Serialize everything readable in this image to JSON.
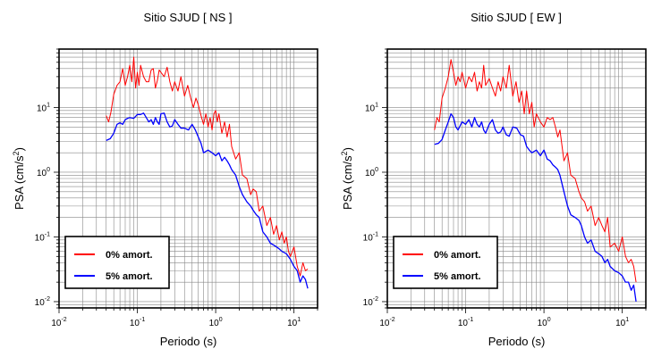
{
  "chart_data": [
    {
      "type": "line",
      "title": "Sitio SJUD [ NS ]",
      "xlabel": "Periodo (s)",
      "ylabel_base": "PSA (cm/s",
      "ylabel_sup": "2",
      "ylabel_close": ")",
      "xscale": "log",
      "yscale": "log",
      "xlim": [
        0.01,
        20
      ],
      "ylim": [
        0.008,
        80
      ],
      "grid": true,
      "legend_location": "lower-left",
      "x_ticks": [
        {
          "base": "10",
          "exp": "-2",
          "value": 0.01
        },
        {
          "base": "10",
          "exp": "-1",
          "value": 0.1
        },
        {
          "base": "10",
          "exp": "0",
          "value": 1
        },
        {
          "base": "10",
          "exp": "1",
          "value": 10
        }
      ],
      "y_ticks": [
        {
          "base": "10",
          "exp": "-2",
          "value": 0.01
        },
        {
          "base": "10",
          "exp": "-1",
          "value": 0.1
        },
        {
          "base": "10",
          "exp": "0",
          "value": 1
        },
        {
          "base": "10",
          "exp": "1",
          "value": 10
        }
      ],
      "series": [
        {
          "name": "0% amort.",
          "color": "#ff0000",
          "x": [
            0.04,
            0.043,
            0.046,
            0.05,
            0.055,
            0.06,
            0.065,
            0.07,
            0.075,
            0.08,
            0.085,
            0.09,
            0.095,
            0.1,
            0.105,
            0.11,
            0.12,
            0.13,
            0.14,
            0.15,
            0.16,
            0.17,
            0.18,
            0.19,
            0.2,
            0.22,
            0.24,
            0.26,
            0.28,
            0.3,
            0.33,
            0.36,
            0.4,
            0.44,
            0.48,
            0.52,
            0.56,
            0.6,
            0.65,
            0.7,
            0.75,
            0.8,
            0.85,
            0.9,
            0.95,
            1.0,
            1.05,
            1.1,
            1.2,
            1.3,
            1.4,
            1.5,
            1.6,
            1.8,
            2.0,
            2.2,
            2.5,
            2.8,
            3.0,
            3.3,
            3.6,
            4.0,
            4.5,
            5.0,
            5.5,
            6.0,
            6.5,
            7.0,
            7.5,
            8.0,
            8.5,
            9.0,
            10.0,
            11.0,
            12.0,
            13.0,
            14.0,
            15.0
          ],
          "y": [
            7.5,
            6.0,
            8.5,
            16,
            22,
            25,
            40,
            22,
            30,
            45,
            25,
            60,
            20,
            35,
            22,
            45,
            30,
            25,
            25,
            38,
            40,
            20,
            26,
            38,
            35,
            30,
            42,
            25,
            18,
            25,
            18,
            30,
            15,
            22,
            14,
            10,
            14,
            11,
            7.5,
            5.5,
            8,
            5,
            7,
            4.5,
            8,
            9,
            6,
            8,
            4,
            6,
            3.5,
            5.5,
            2.5,
            1.6,
            2,
            0.9,
            0.8,
            0.45,
            0.55,
            0.5,
            0.25,
            0.3,
            0.15,
            0.2,
            0.11,
            0.15,
            0.09,
            0.12,
            0.08,
            0.1,
            0.06,
            0.05,
            0.07,
            0.035,
            0.025,
            0.04,
            0.03,
            0.032
          ]
        },
        {
          "name": "5% amort.",
          "color": "#0000ff",
          "x": [
            0.04,
            0.045,
            0.05,
            0.055,
            0.06,
            0.065,
            0.07,
            0.075,
            0.08,
            0.09,
            0.1,
            0.11,
            0.12,
            0.13,
            0.14,
            0.15,
            0.16,
            0.17,
            0.18,
            0.19,
            0.2,
            0.22,
            0.24,
            0.26,
            0.28,
            0.3,
            0.33,
            0.36,
            0.4,
            0.45,
            0.5,
            0.55,
            0.6,
            0.65,
            0.7,
            0.8,
            0.9,
            1.0,
            1.1,
            1.2,
            1.3,
            1.4,
            1.5,
            1.6,
            1.8,
            2.0,
            2.2,
            2.5,
            2.8,
            3.0,
            3.3,
            3.6,
            4.0,
            4.5,
            5.0,
            5.5,
            6.0,
            6.5,
            7.0,
            8.0,
            9.0,
            10.0,
            11.0,
            12.0,
            13.0,
            14.0,
            15.0
          ],
          "y": [
            3.1,
            3.3,
            4.0,
            5.5,
            5.8,
            5.5,
            6.5,
            6.8,
            7.0,
            6.8,
            7.8,
            7.8,
            8.2,
            7.0,
            6.0,
            6.5,
            5.5,
            7.0,
            6.0,
            5.5,
            8.0,
            8.2,
            6.0,
            5.0,
            5.2,
            6.5,
            5.5,
            4.8,
            4.8,
            4.5,
            5.5,
            4.5,
            3.5,
            2.8,
            2.0,
            2.2,
            2.0,
            1.8,
            2.0,
            1.5,
            1.7,
            1.5,
            1.3,
            1.1,
            0.9,
            0.6,
            0.45,
            0.35,
            0.3,
            0.26,
            0.22,
            0.2,
            0.12,
            0.1,
            0.08,
            0.075,
            0.07,
            0.065,
            0.06,
            0.055,
            0.045,
            0.035,
            0.03,
            0.02,
            0.025,
            0.022,
            0.016
          ]
        }
      ]
    },
    {
      "type": "line",
      "title": "Sitio SJUD [ EW ]",
      "xlabel": "Periodo (s)",
      "ylabel_base": "PSA (cm/s",
      "ylabel_sup": "2",
      "ylabel_close": ")",
      "xscale": "log",
      "yscale": "log",
      "xlim": [
        0.01,
        20
      ],
      "ylim": [
        0.008,
        80
      ],
      "grid": true,
      "legend_location": "lower-left",
      "x_ticks": [
        {
          "base": "10",
          "exp": "-2",
          "value": 0.01
        },
        {
          "base": "10",
          "exp": "-1",
          "value": 0.1
        },
        {
          "base": "10",
          "exp": "0",
          "value": 1
        },
        {
          "base": "10",
          "exp": "1",
          "value": 10
        }
      ],
      "y_ticks": [
        {
          "base": "10",
          "exp": "-2",
          "value": 0.01
        },
        {
          "base": "10",
          "exp": "-1",
          "value": 0.1
        },
        {
          "base": "10",
          "exp": "0",
          "value": 1
        },
        {
          "base": "10",
          "exp": "1",
          "value": 10
        }
      ],
      "series": [
        {
          "name": "0% amort.",
          "color": "#ff0000",
          "x": [
            0.04,
            0.043,
            0.046,
            0.05,
            0.055,
            0.06,
            0.065,
            0.07,
            0.075,
            0.08,
            0.085,
            0.09,
            0.1,
            0.11,
            0.12,
            0.13,
            0.14,
            0.15,
            0.16,
            0.17,
            0.18,
            0.2,
            0.22,
            0.24,
            0.26,
            0.28,
            0.3,
            0.33,
            0.36,
            0.4,
            0.44,
            0.48,
            0.52,
            0.56,
            0.6,
            0.65,
            0.7,
            0.75,
            0.8,
            0.9,
            1.0,
            1.1,
            1.2,
            1.3,
            1.4,
            1.5,
            1.6,
            1.8,
            2.0,
            2.2,
            2.5,
            2.8,
            3.0,
            3.3,
            3.6,
            4.0,
            4.5,
            5.0,
            5.5,
            6.0,
            6.5,
            7.0,
            8.0,
            9.0,
            10.0,
            11.0,
            12.0,
            13.0,
            14.0,
            15.0
          ],
          "y": [
            4.5,
            7.0,
            6.0,
            14,
            20,
            30,
            55,
            35,
            22,
            30,
            25,
            35,
            20,
            30,
            25,
            35,
            18,
            25,
            20,
            45,
            22,
            28,
            20,
            15,
            25,
            18,
            30,
            20,
            45,
            15,
            25,
            12,
            18,
            8,
            18,
            8,
            12,
            5,
            8,
            6,
            5,
            7,
            6.5,
            7,
            5,
            3.5,
            4.5,
            1.5,
            2,
            0.9,
            0.8,
            0.5,
            0.4,
            0.35,
            0.25,
            0.3,
            0.15,
            0.2,
            0.15,
            0.12,
            0.2,
            0.07,
            0.08,
            0.06,
            0.1,
            0.05,
            0.04,
            0.045,
            0.035,
            0.02
          ]
        },
        {
          "name": "5% amort.",
          "color": "#0000ff",
          "x": [
            0.04,
            0.045,
            0.05,
            0.055,
            0.06,
            0.065,
            0.07,
            0.075,
            0.08,
            0.09,
            0.1,
            0.11,
            0.12,
            0.13,
            0.14,
            0.15,
            0.16,
            0.17,
            0.18,
            0.2,
            0.22,
            0.24,
            0.26,
            0.28,
            0.3,
            0.33,
            0.36,
            0.4,
            0.45,
            0.5,
            0.55,
            0.6,
            0.65,
            0.7,
            0.8,
            0.9,
            1.0,
            1.1,
            1.2,
            1.3,
            1.4,
            1.5,
            1.6,
            1.8,
            2.0,
            2.2,
            2.5,
            2.8,
            3.0,
            3.3,
            3.6,
            4.0,
            4.5,
            5.0,
            5.5,
            6.0,
            6.5,
            7.0,
            8.0,
            9.0,
            10.0,
            11.0,
            12.0,
            13.0,
            14.0,
            15.0
          ],
          "y": [
            2.7,
            2.8,
            3.2,
            4.5,
            6.0,
            8.0,
            7.0,
            5.0,
            4.5,
            6.0,
            5.5,
            6.5,
            5.0,
            7.0,
            5.5,
            5.0,
            6.0,
            4.5,
            4.0,
            5.5,
            6.5,
            4.5,
            4.0,
            4.2,
            5.0,
            3.8,
            3.6,
            5.0,
            4.8,
            3.8,
            3.6,
            2.5,
            2.2,
            2.0,
            2.2,
            1.8,
            2.2,
            1.6,
            1.5,
            1.3,
            1.2,
            1.1,
            0.9,
            0.5,
            0.3,
            0.22,
            0.2,
            0.18,
            0.15,
            0.1,
            0.08,
            0.09,
            0.06,
            0.055,
            0.05,
            0.04,
            0.045,
            0.035,
            0.03,
            0.028,
            0.025,
            0.02,
            0.02,
            0.015,
            0.018,
            0.01
          ]
        }
      ]
    }
  ]
}
